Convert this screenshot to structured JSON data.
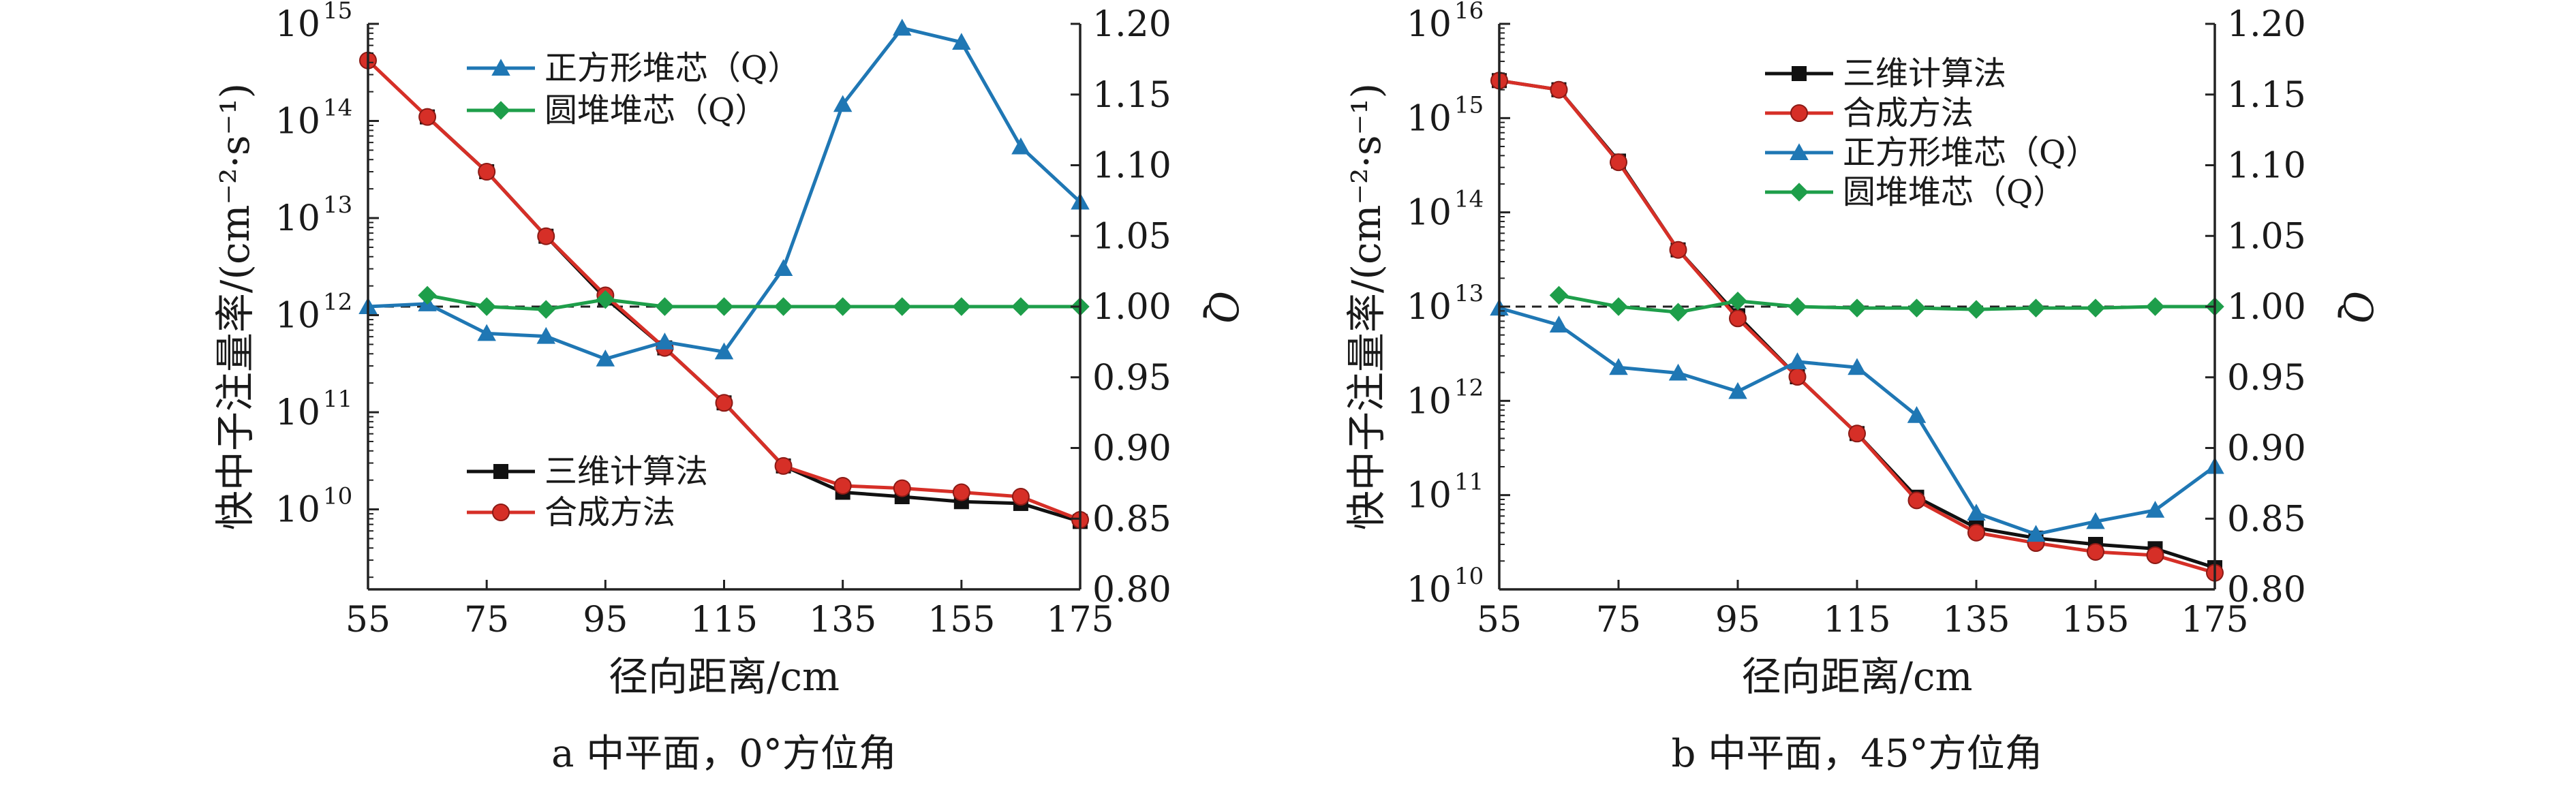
{
  "chart_data": [
    {
      "type": "line",
      "panel": "a",
      "caption": "a  中平面，0°方位角",
      "xlabel": "径向距离/cm",
      "ylabel": "快中子注量率/(cm⁻²·s⁻¹)",
      "y2label": "Q",
      "xlim": [
        55,
        175
      ],
      "xticks": [
        "55",
        "75",
        "95",
        "115",
        "135",
        "155",
        "175"
      ],
      "yscale": "log",
      "ylim": [
        1500000000.0,
        1000000000000000.0
      ],
      "yticks": [
        {
          "value": 10000000000.0,
          "base": "10",
          "exp": "10"
        },
        {
          "value": 100000000000.0,
          "base": "10",
          "exp": "11"
        },
        {
          "value": 1000000000000.0,
          "base": "10",
          "exp": "12"
        },
        {
          "value": 10000000000000.0,
          "base": "10",
          "exp": "13"
        },
        {
          "value": 100000000000000.0,
          "base": "10",
          "exp": "14"
        },
        {
          "value": 1000000000000000.0,
          "base": "10",
          "exp": "15"
        }
      ],
      "y2lim": [
        0.8,
        1.2
      ],
      "y2ticks": [
        "0.80",
        "0.85",
        "0.90",
        "0.95",
        "1.00",
        "1.05",
        "1.10",
        "1.15",
        "1.20"
      ],
      "reference_line_Q": 1.0,
      "legend_groups": [
        {
          "placement": "top-left",
          "entries": [
            "正方形堆芯（Q）",
            "圆堆堆芯（Q）"
          ]
        },
        {
          "placement": "bottom-left",
          "entries": [
            "三维计算法",
            "合成方法"
          ]
        }
      ],
      "series": [
        {
          "name": "三维计算法",
          "axis": "left",
          "color": "#111111",
          "marker": "square",
          "x": [
            65,
            75,
            85,
            95,
            105,
            115,
            125,
            135,
            145,
            155,
            165,
            175
          ],
          "y": [
            110000000000000.0,
            30000000000000.0,
            6500000000000.0,
            1500000000000.0,
            460000000000.0,
            125000000000.0,
            28000000000.0,
            15000000000.0,
            13500000000.0,
            12000000000.0,
            11500000000.0,
            7500000000.0
          ]
        },
        {
          "name": "合成方法",
          "axis": "left",
          "color": "#d62f27",
          "marker": "circle",
          "x": [
            55,
            65,
            75,
            85,
            95,
            105,
            115,
            125,
            135,
            145,
            155,
            165,
            175
          ],
          "y": [
            420000000000000.0,
            110000000000000.0,
            30000000000000.0,
            6500000000000.0,
            1600000000000.0,
            460000000000.0,
            125000000000.0,
            28000000000.0,
            17500000000.0,
            16500000000.0,
            15000000000.0,
            13500000000.0,
            7800000000.0
          ]
        },
        {
          "name": "正方形堆芯（Q）",
          "axis": "right",
          "color": "#1f77b4",
          "marker": "triangle",
          "x": [
            55,
            65,
            75,
            85,
            95,
            105,
            115,
            125,
            135,
            145,
            155,
            165,
            175
          ],
          "y": [
            1.0,
            1.002,
            0.981,
            0.979,
            0.963,
            0.975,
            0.968,
            1.027,
            1.143,
            1.197,
            1.187,
            1.113,
            1.074
          ]
        },
        {
          "name": "圆堆堆芯（Q）",
          "axis": "right",
          "color": "#1e9e4a",
          "marker": "diamond",
          "x": [
            65,
            75,
            85,
            95,
            105,
            115,
            125,
            135,
            145,
            155,
            165,
            175
          ],
          "y": [
            1.008,
            1.0,
            0.998,
            1.005,
            1.0,
            1.0,
            1.0,
            1.0,
            1.0,
            1.0,
            1.0,
            1.0
          ]
        }
      ]
    },
    {
      "type": "line",
      "panel": "b",
      "caption": "b  中平面，45°方位角",
      "xlabel": "径向距离/cm",
      "ylabel": "快中子注量率/(cm⁻²·s⁻¹)",
      "y2label": "Q",
      "xlim": [
        55,
        175
      ],
      "xticks": [
        "55",
        "75",
        "95",
        "115",
        "135",
        "155",
        "175"
      ],
      "yscale": "log",
      "ylim": [
        10000000000.0,
        1e+16
      ],
      "yticks": [
        {
          "value": 10000000000.0,
          "base": "10",
          "exp": "10"
        },
        {
          "value": 100000000000.0,
          "base": "10",
          "exp": "11"
        },
        {
          "value": 1000000000000.0,
          "base": "10",
          "exp": "12"
        },
        {
          "value": 10000000000000.0,
          "base": "10",
          "exp": "13"
        },
        {
          "value": 100000000000000.0,
          "base": "10",
          "exp": "14"
        },
        {
          "value": 1000000000000000.0,
          "base": "10",
          "exp": "15"
        },
        {
          "value": 1e+16,
          "base": "10",
          "exp": "16"
        }
      ],
      "y2lim": [
        0.8,
        1.2
      ],
      "y2ticks": [
        "0.80",
        "0.85",
        "0.90",
        "0.95",
        "1.00",
        "1.05",
        "1.10",
        "1.15",
        "1.20"
      ],
      "reference_line_Q": 1.0,
      "legend_groups": [
        {
          "placement": "top-center",
          "entries": [
            "三维计算法",
            "合成方法",
            "正方形堆芯（Q）",
            "圆堆堆芯（Q）"
          ]
        }
      ],
      "series": [
        {
          "name": "三维计算法",
          "axis": "left",
          "color": "#111111",
          "marker": "square",
          "x": [
            55,
            65,
            75,
            85,
            95,
            105,
            115,
            125,
            135,
            145,
            155,
            165,
            175
          ],
          "y": [
            2500000000000000.0,
            2000000000000000.0,
            350000000000000.0,
            40000000000000.0,
            8000000000000.0,
            1800000000000.0,
            450000000000.0,
            95000000000.0,
            45000000000.0,
            35000000000.0,
            30000000000.0,
            27000000000.0,
            17000000000.0
          ]
        },
        {
          "name": "合成方法",
          "axis": "left",
          "color": "#d62f27",
          "marker": "circle",
          "x": [
            55,
            65,
            75,
            85,
            95,
            105,
            115,
            125,
            135,
            145,
            155,
            165,
            175
          ],
          "y": [
            2500000000000000.0,
            2000000000000000.0,
            340000000000000.0,
            40000000000000.0,
            7500000000000.0,
            1800000000000.0,
            450000000000.0,
            88000000000.0,
            40000000000.0,
            31000000000.0,
            25000000000.0,
            23000000000.0,
            15000000000.0
          ]
        },
        {
          "name": "正方形堆芯（Q）",
          "axis": "right",
          "color": "#1f77b4",
          "marker": "triangle",
          "x": [
            55,
            65,
            75,
            85,
            95,
            105,
            115,
            125,
            135,
            145,
            155,
            165,
            175
          ],
          "y": [
            0.999,
            0.987,
            0.957,
            0.953,
            0.94,
            0.961,
            0.957,
            0.923,
            0.854,
            0.839,
            0.848,
            0.856,
            0.887
          ]
        },
        {
          "name": "圆堆堆芯（Q）",
          "axis": "right",
          "color": "#1e9e4a",
          "marker": "diamond",
          "x": [
            65,
            75,
            85,
            95,
            105,
            115,
            125,
            135,
            145,
            155,
            165,
            175
          ],
          "y": [
            1.008,
            1.0,
            0.996,
            1.004,
            1.0,
            0.999,
            0.999,
            0.998,
            0.999,
            0.999,
            1.0,
            1.0
          ]
        }
      ]
    }
  ]
}
